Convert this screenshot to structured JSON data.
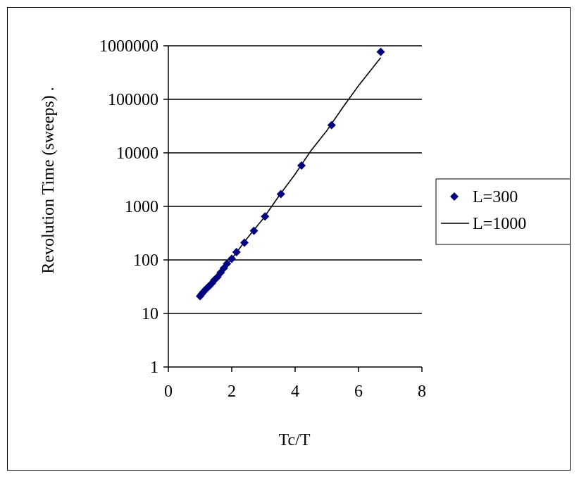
{
  "chart_data": {
    "type": "scatter",
    "title": "",
    "xlabel": "Tc/T",
    "ylabel": "Revolution Time (sweeps) .",
    "xlim": [
      0,
      8
    ],
    "ylim": [
      1,
      1000000
    ],
    "yscale": "log",
    "x_ticks": [
      "0",
      "2",
      "4",
      "6",
      "8"
    ],
    "y_ticks": [
      "1",
      "10",
      "100",
      "1000",
      "10000",
      "100000",
      "1000000"
    ],
    "grid": "horizontal",
    "legend": "right",
    "series": [
      {
        "name": "L=300",
        "kind": "markers",
        "marker": "diamond",
        "color": "#000080",
        "x": [
          1.0,
          1.05,
          1.1,
          1.15,
          1.2,
          1.25,
          1.3,
          1.38,
          1.45,
          1.55,
          1.65,
          1.75,
          1.85,
          2.0,
          2.15,
          2.4,
          2.7,
          3.05,
          3.55,
          4.2,
          5.15,
          6.7
        ],
        "y": [
          21,
          23,
          25,
          27,
          29,
          31,
          33,
          37,
          42,
          48,
          58,
          70,
          85,
          105,
          140,
          210,
          350,
          650,
          1700,
          5800,
          33000,
          770000
        ]
      },
      {
        "name": "L=1000",
        "kind": "line",
        "color": "#000000",
        "x": [
          1.0,
          1.5,
          2.0,
          2.5,
          3.0,
          3.5,
          4.0,
          4.5,
          5.0,
          5.5,
          6.0,
          6.7
        ],
        "y": [
          20,
          42,
          105,
          260,
          600,
          1600,
          4000,
          11000,
          26000,
          70000,
          180000,
          600000
        ]
      }
    ]
  }
}
